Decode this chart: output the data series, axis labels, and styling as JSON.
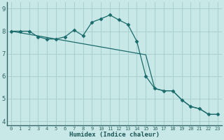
{
  "title": "",
  "xlabel": "Humidex (Indice chaleur)",
  "bg_color": "#c8e8e8",
  "grid_color": "#a8d0d0",
  "line_color": "#1a6b6b",
  "line1_x": [
    0,
    1,
    2,
    3,
    4,
    5,
    6,
    7,
    8,
    9,
    10,
    11,
    12,
    13,
    14,
    15,
    16,
    17,
    18,
    19,
    20,
    21,
    22,
    23
  ],
  "line1_y": [
    8.0,
    8.0,
    8.0,
    7.75,
    7.65,
    7.65,
    7.75,
    8.05,
    7.8,
    8.4,
    8.55,
    8.72,
    8.5,
    8.3,
    7.55,
    6.0,
    5.45,
    5.35,
    5.35,
    4.95,
    4.65,
    4.55,
    4.3,
    4.3
  ],
  "line2_x": [
    0,
    1,
    2,
    3,
    4,
    5,
    6,
    7,
    8,
    9,
    10,
    11,
    12,
    13,
    14,
    15,
    16,
    17,
    18,
    19,
    20,
    21,
    22,
    23
  ],
  "line2_y": [
    8.0,
    7.93,
    7.86,
    7.79,
    7.72,
    7.65,
    7.58,
    7.51,
    7.44,
    7.37,
    7.3,
    7.23,
    7.16,
    7.09,
    7.02,
    6.95,
    5.45,
    5.35,
    5.35,
    4.95,
    4.65,
    4.55,
    4.3,
    4.3
  ],
  "ylim": [
    3.8,
    9.3
  ],
  "xlim": [
    -0.5,
    23.5
  ],
  "yticks": [
    4,
    5,
    6,
    7,
    8,
    9
  ],
  "xticks": [
    0,
    1,
    2,
    3,
    4,
    5,
    6,
    7,
    8,
    9,
    10,
    11,
    12,
    13,
    14,
    15,
    16,
    17,
    18,
    19,
    20,
    21,
    22,
    23
  ],
  "axis_color": "#336666",
  "tick_color": "#336666",
  "xlabel_color": "#1a5555"
}
